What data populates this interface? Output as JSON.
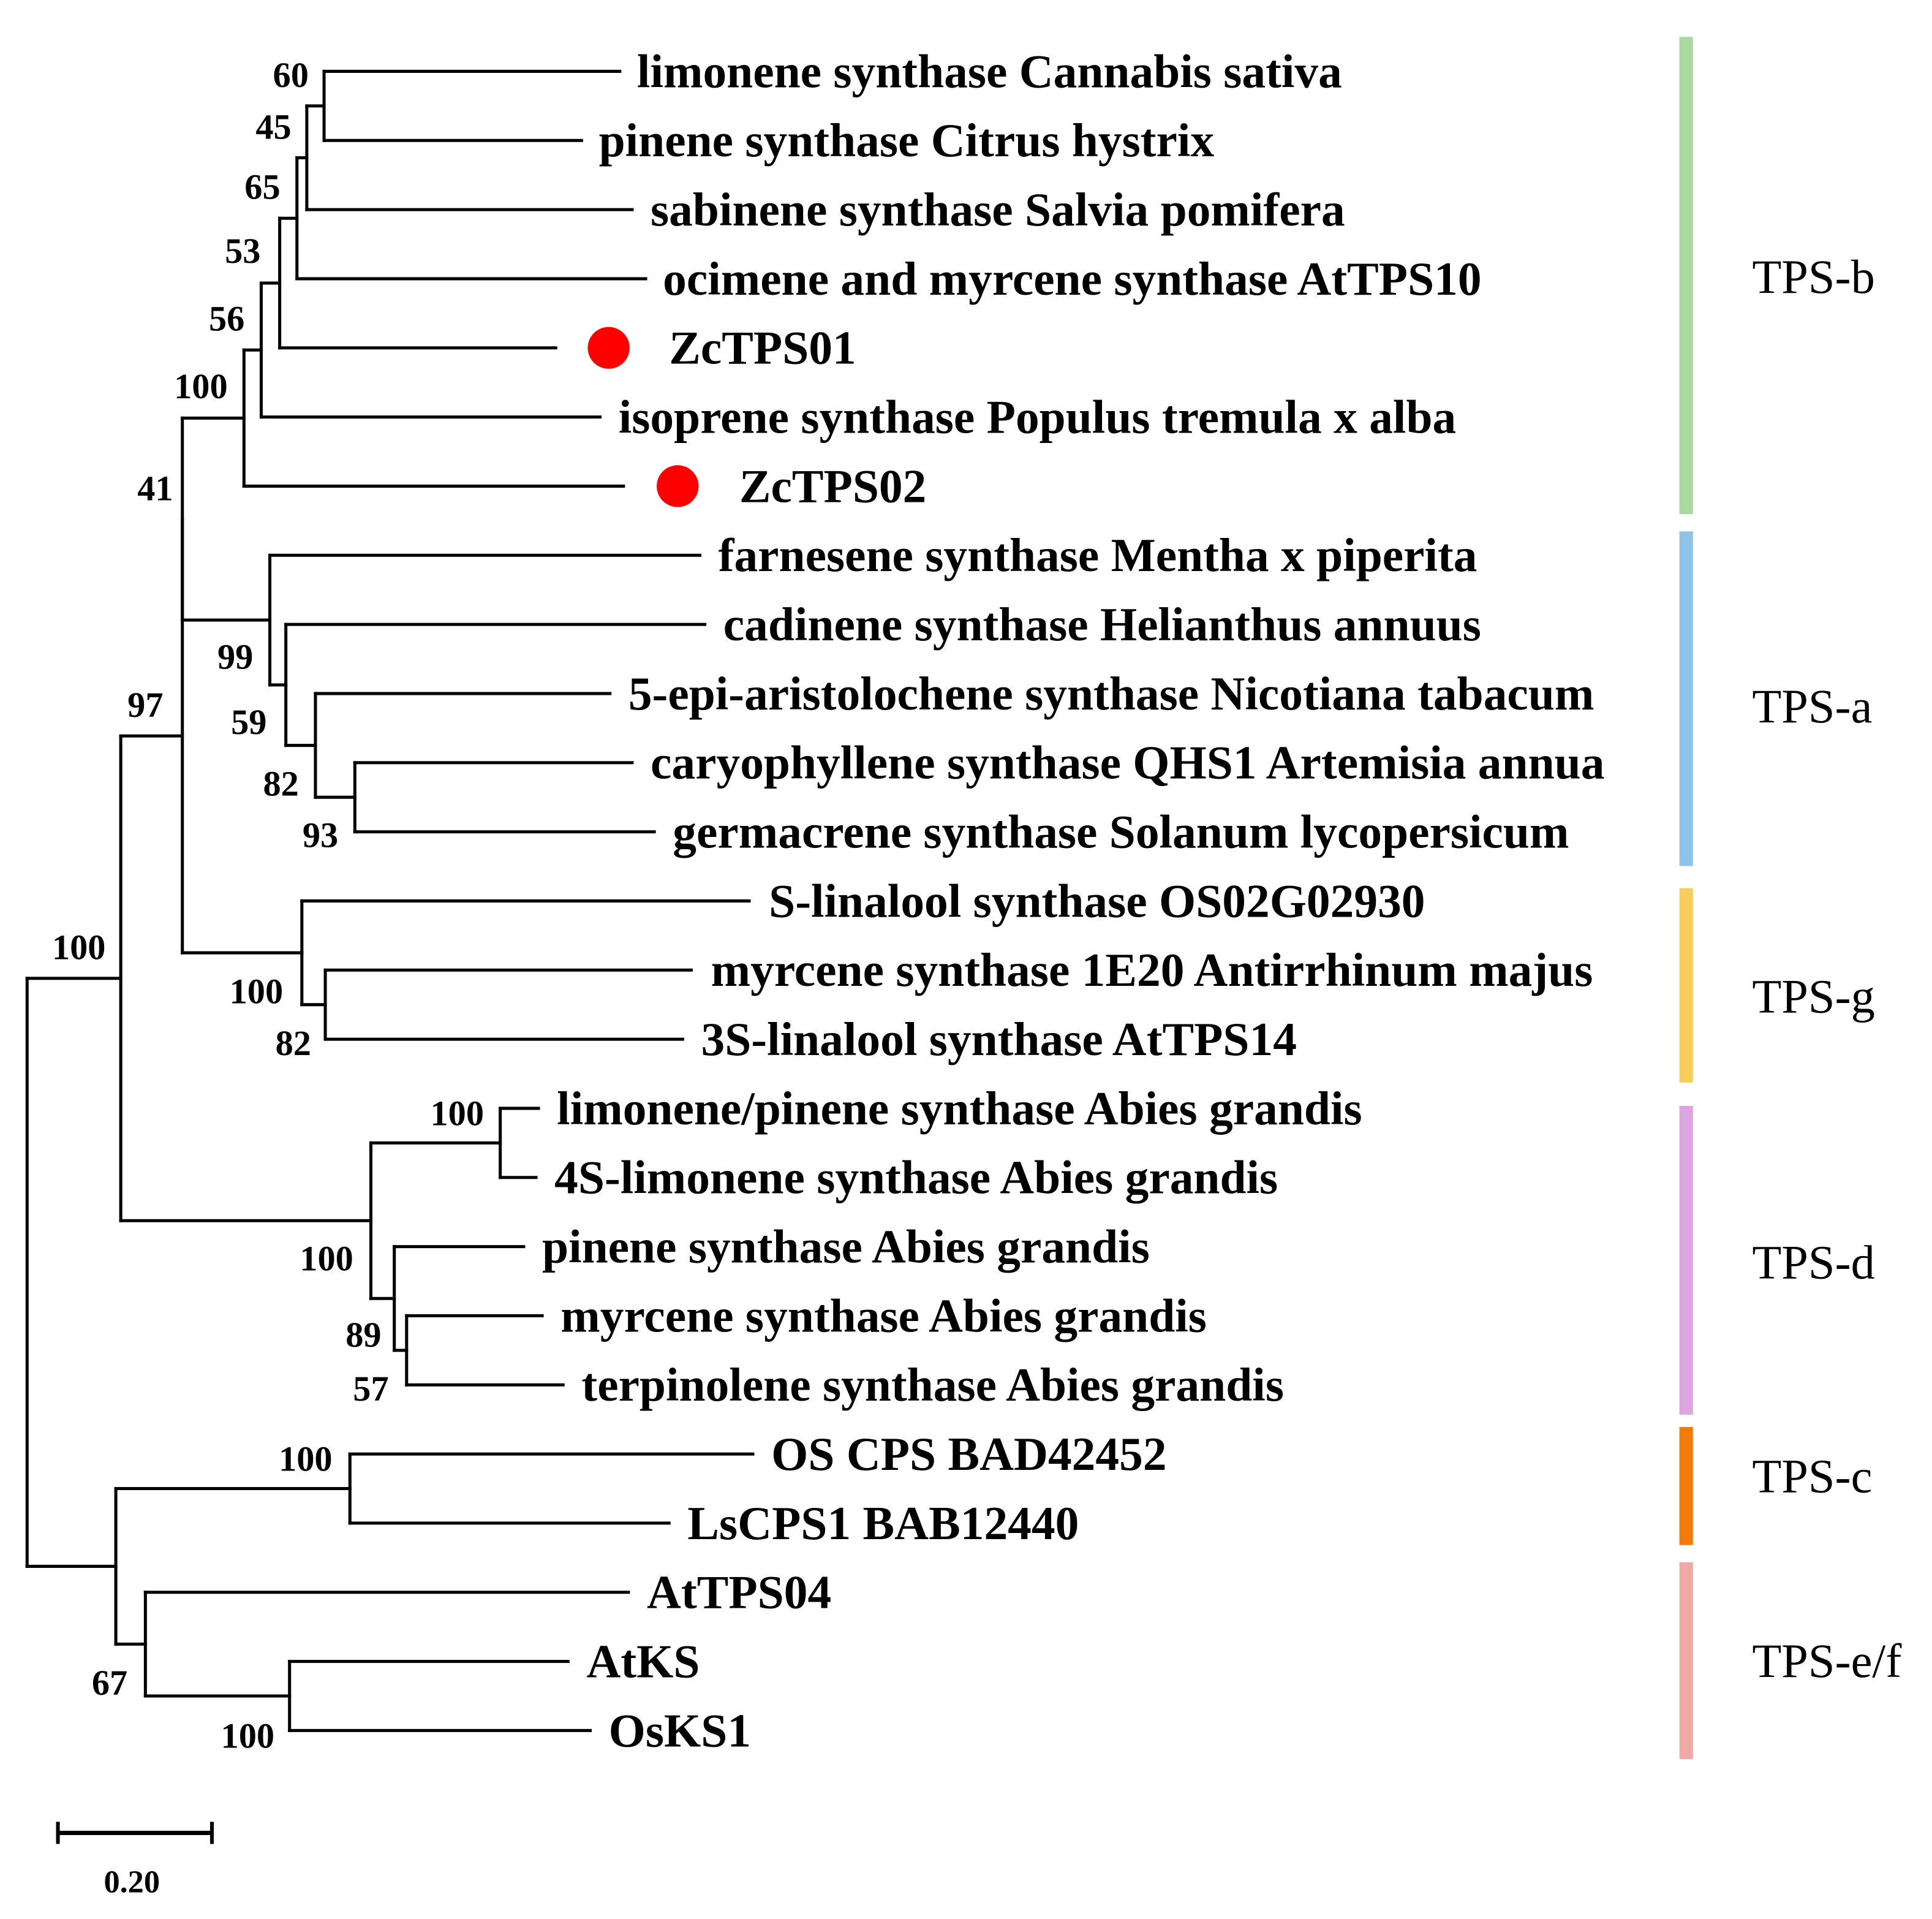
{
  "figure": {
    "leaves": [
      {
        "label": "limonene synthase Cannabis sativa"
      },
      {
        "label": "pinene synthase Citrus hystrix"
      },
      {
        "label": "sabinene synthase Salvia pomifera"
      },
      {
        "label": "ocimene and myrcene synthase AtTPS10"
      },
      {
        "label": "ZcTPS01",
        "marker": "red-dot"
      },
      {
        "label": "isoprene synthase Populus tremula x alba"
      },
      {
        "label": "ZcTPS02",
        "marker": "red-dot"
      },
      {
        "label": "farnesene synthase Mentha x piperita"
      },
      {
        "label": "cadinene synthase Helianthus annuus"
      },
      {
        "label": "5-epi-aristolochene synthase Nicotiana tabacum"
      },
      {
        "label": "caryophyllene synthase QHS1 Artemisia annua"
      },
      {
        "label": "germacrene synthase Solanum lycopersicum"
      },
      {
        "label": "S-linalool synthase OS02G02930"
      },
      {
        "label": "myrcene synthase 1E20 Antirrhinum majus"
      },
      {
        "label": "3S-linalool synthase AtTPS14"
      },
      {
        "label": "limonene/pinene synthase Abies grandis"
      },
      {
        "label": "4S-limonene synthase Abies grandis"
      },
      {
        "label": "pinene synthase Abies grandis"
      },
      {
        "label": "myrcene synthase Abies grandis"
      },
      {
        "label": "terpinolene synthase Abies grandis"
      },
      {
        "label": "OS CPS BAD42452"
      },
      {
        "label": "LsCPS1 BAB12440"
      },
      {
        "label": "AtTPS04"
      },
      {
        "label": "AtKS"
      },
      {
        "label": "OsKS1"
      }
    ],
    "bootstrap": [
      "60",
      "45",
      "65",
      "53",
      "56",
      "100",
      "41",
      "99",
      "59",
      "82",
      "93",
      "100",
      "82",
      "97",
      "100",
      "100",
      "100",
      "89",
      "57",
      "100",
      "67",
      "100"
    ],
    "clades": [
      {
        "name": "TPS-b",
        "color": "#a8d9a0"
      },
      {
        "name": "TPS-a",
        "color": "#8fc3e6"
      },
      {
        "name": "TPS-g",
        "color": "#f7ce5b"
      },
      {
        "name": "TPS-d",
        "color": "#dea4df"
      },
      {
        "name": "TPS-c",
        "color": "#f27b0c"
      },
      {
        "name": "TPS-e/f",
        "color": "#eeaba6"
      }
    ],
    "scale_bar": {
      "label": "0.20"
    },
    "colors": {
      "branch": "#000000",
      "marker": "#ff0000",
      "text": "#000000",
      "background": "#ffffff"
    }
  }
}
